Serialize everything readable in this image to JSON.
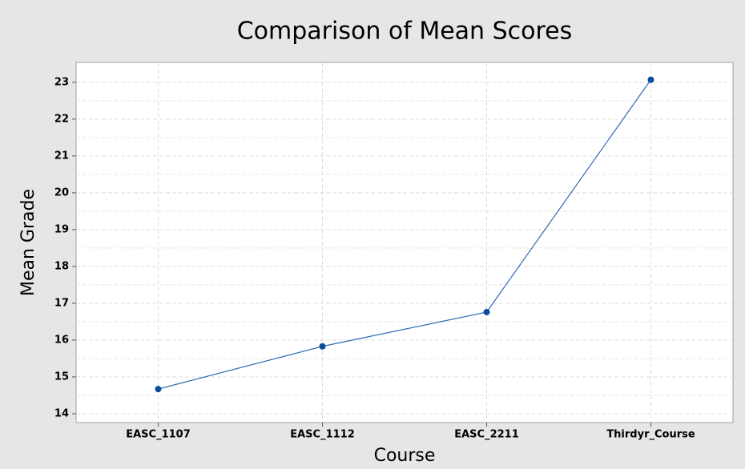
{
  "chart_data": {
    "type": "line",
    "title": "Comparison of Mean Scores",
    "x_label": "Course",
    "y_label": "Mean Grade",
    "categories": [
      "EASC_1107",
      "EASC_1112",
      "EASC_2211",
      "Thirdyr_Course"
    ],
    "series": [
      {
        "name": "Mean Grade",
        "color": "#2e6bb4",
        "marker_color": "#0b4d9c",
        "values": [
          14.67,
          15.83,
          16.76,
          23.07
        ]
      }
    ],
    "ylim": [
      13.76,
      23.54
    ],
    "yticks": [
      14,
      15,
      16,
      17,
      18,
      19,
      20,
      21,
      22,
      23
    ],
    "yminorticks": [
      14.5,
      15.5,
      16.5,
      17.5,
      18.5,
      19.5,
      20.5,
      21.5,
      22.5
    ],
    "grid": true
  }
}
